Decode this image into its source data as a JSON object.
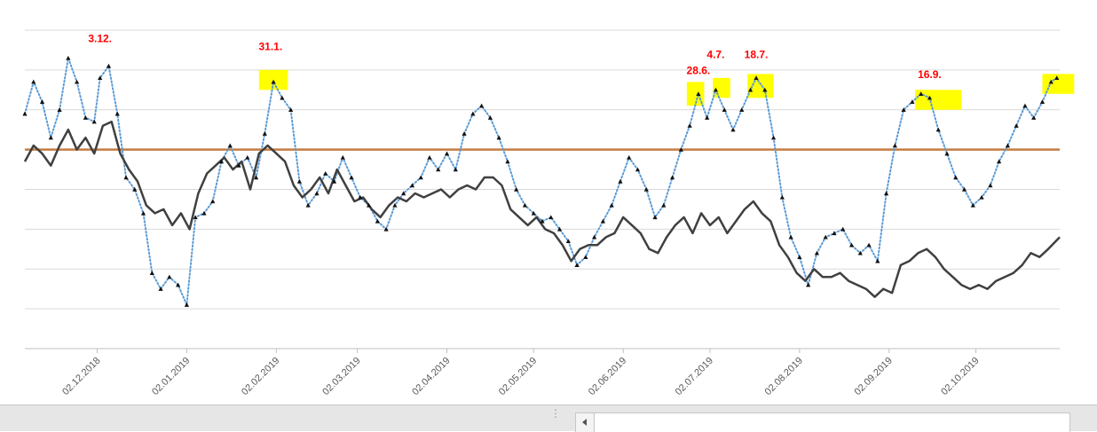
{
  "chart_data": {
    "type": "line",
    "title": "",
    "xlabel": "",
    "ylabel": "",
    "grid": true,
    "legend": "none",
    "x_ticks": [
      "02.12.2018",
      "02.01.2019",
      "02.02.2019",
      "02.03.2019",
      "02.04.2019",
      "02.05.2019",
      "02.06.2019",
      "02.07.2019",
      "02.08.2019",
      "02.09.2019",
      "02.10.2019"
    ],
    "xlim": [
      "2018-11-07",
      "2019-10-31"
    ],
    "ylim": [
      0,
      8
    ],
    "reference_line": {
      "value": 5,
      "color": "#c47c40"
    },
    "series": [
      {
        "style": "dotted-with-triangles",
        "color": "#5b9bd5",
        "points": [
          [
            "2018-11-07",
            5.9
          ],
          [
            "2018-11-10",
            6.7
          ],
          [
            "2018-11-13",
            6.2
          ],
          [
            "2018-11-16",
            5.3
          ],
          [
            "2018-11-19",
            6.0
          ],
          [
            "2018-11-22",
            7.3
          ],
          [
            "2018-11-25",
            6.7
          ],
          [
            "2018-11-28",
            5.8
          ],
          [
            "2018-12-01",
            5.7
          ],
          [
            "2018-12-03",
            6.8
          ],
          [
            "2018-12-06",
            7.1
          ],
          [
            "2018-12-09",
            5.9
          ],
          [
            "2018-12-12",
            4.3
          ],
          [
            "2018-12-15",
            4.0
          ],
          [
            "2018-12-18",
            3.4
          ],
          [
            "2018-12-21",
            1.9
          ],
          [
            "2018-12-24",
            1.5
          ],
          [
            "2018-12-27",
            1.8
          ],
          [
            "2018-12-30",
            1.6
          ],
          [
            "2019-01-02",
            1.1
          ],
          [
            "2019-01-05",
            3.3
          ],
          [
            "2019-01-08",
            3.4
          ],
          [
            "2019-01-11",
            3.7
          ],
          [
            "2019-01-14",
            4.7
          ],
          [
            "2019-01-17",
            5.1
          ],
          [
            "2019-01-20",
            4.6
          ],
          [
            "2019-01-23",
            4.8
          ],
          [
            "2019-01-26",
            4.3
          ],
          [
            "2019-01-29",
            5.4
          ],
          [
            "2019-02-01",
            6.7
          ],
          [
            "2019-02-04",
            6.3
          ],
          [
            "2019-02-07",
            6.0
          ],
          [
            "2019-02-10",
            4.2
          ],
          [
            "2019-02-13",
            3.6
          ],
          [
            "2019-02-16",
            3.9
          ],
          [
            "2019-02-19",
            4.4
          ],
          [
            "2019-02-22",
            4.2
          ],
          [
            "2019-02-25",
            4.8
          ],
          [
            "2019-02-28",
            4.3
          ],
          [
            "2019-03-03",
            3.8
          ],
          [
            "2019-03-06",
            3.6
          ],
          [
            "2019-03-09",
            3.2
          ],
          [
            "2019-03-12",
            3.0
          ],
          [
            "2019-03-15",
            3.6
          ],
          [
            "2019-03-18",
            3.9
          ],
          [
            "2019-03-21",
            4.1
          ],
          [
            "2019-03-24",
            4.3
          ],
          [
            "2019-03-27",
            4.8
          ],
          [
            "2019-03-30",
            4.5
          ],
          [
            "2019-04-02",
            4.9
          ],
          [
            "2019-04-05",
            4.5
          ],
          [
            "2019-04-08",
            5.4
          ],
          [
            "2019-04-11",
            5.9
          ],
          [
            "2019-04-14",
            6.1
          ],
          [
            "2019-04-17",
            5.8
          ],
          [
            "2019-04-20",
            5.3
          ],
          [
            "2019-04-23",
            4.7
          ],
          [
            "2019-04-26",
            4.0
          ],
          [
            "2019-04-29",
            3.6
          ],
          [
            "2019-05-02",
            3.4
          ],
          [
            "2019-05-05",
            3.2
          ],
          [
            "2019-05-08",
            3.3
          ],
          [
            "2019-05-11",
            3.0
          ],
          [
            "2019-05-14",
            2.7
          ],
          [
            "2019-05-17",
            2.1
          ],
          [
            "2019-05-20",
            2.3
          ],
          [
            "2019-05-23",
            2.8
          ],
          [
            "2019-05-26",
            3.2
          ],
          [
            "2019-05-29",
            3.6
          ],
          [
            "2019-06-01",
            4.2
          ],
          [
            "2019-06-04",
            4.8
          ],
          [
            "2019-06-07",
            4.5
          ],
          [
            "2019-06-10",
            4.0
          ],
          [
            "2019-06-13",
            3.3
          ],
          [
            "2019-06-16",
            3.6
          ],
          [
            "2019-06-19",
            4.3
          ],
          [
            "2019-06-22",
            5.0
          ],
          [
            "2019-06-25",
            5.6
          ],
          [
            "2019-06-28",
            6.4
          ],
          [
            "2019-07-01",
            5.8
          ],
          [
            "2019-07-04",
            6.5
          ],
          [
            "2019-07-07",
            6.0
          ],
          [
            "2019-07-10",
            5.5
          ],
          [
            "2019-07-13",
            6.0
          ],
          [
            "2019-07-16",
            6.5
          ],
          [
            "2019-07-18",
            6.8
          ],
          [
            "2019-07-21",
            6.5
          ],
          [
            "2019-07-24",
            5.3
          ],
          [
            "2019-07-27",
            3.8
          ],
          [
            "2019-07-30",
            2.8
          ],
          [
            "2019-08-02",
            2.3
          ],
          [
            "2019-08-05",
            1.6
          ],
          [
            "2019-08-08",
            2.4
          ],
          [
            "2019-08-11",
            2.8
          ],
          [
            "2019-08-14",
            2.9
          ],
          [
            "2019-08-17",
            3.0
          ],
          [
            "2019-08-20",
            2.6
          ],
          [
            "2019-08-23",
            2.4
          ],
          [
            "2019-08-26",
            2.6
          ],
          [
            "2019-08-29",
            2.2
          ],
          [
            "2019-09-01",
            3.9
          ],
          [
            "2019-09-04",
            5.1
          ],
          [
            "2019-09-07",
            6.0
          ],
          [
            "2019-09-10",
            6.2
          ],
          [
            "2019-09-13",
            6.4
          ],
          [
            "2019-09-16",
            6.3
          ],
          [
            "2019-09-19",
            5.5
          ],
          [
            "2019-09-22",
            4.9
          ],
          [
            "2019-09-25",
            4.3
          ],
          [
            "2019-09-28",
            4.0
          ],
          [
            "2019-10-01",
            3.6
          ],
          [
            "2019-10-04",
            3.8
          ],
          [
            "2019-10-07",
            4.1
          ],
          [
            "2019-10-10",
            4.7
          ],
          [
            "2019-10-13",
            5.1
          ],
          [
            "2019-10-16",
            5.6
          ],
          [
            "2019-10-19",
            6.1
          ],
          [
            "2019-10-22",
            5.8
          ],
          [
            "2019-10-25",
            6.2
          ],
          [
            "2019-10-28",
            6.7
          ],
          [
            "2019-10-30",
            6.8
          ]
        ]
      },
      {
        "style": "solid",
        "color": "#404040",
        "points": [
          [
            "2018-11-07",
            4.7
          ],
          [
            "2018-11-10",
            5.1
          ],
          [
            "2018-11-13",
            4.9
          ],
          [
            "2018-11-16",
            4.6
          ],
          [
            "2018-11-19",
            5.1
          ],
          [
            "2018-11-22",
            5.5
          ],
          [
            "2018-11-25",
            5.0
          ],
          [
            "2018-11-28",
            5.3
          ],
          [
            "2018-12-01",
            4.9
          ],
          [
            "2018-12-04",
            5.6
          ],
          [
            "2018-12-07",
            5.7
          ],
          [
            "2018-12-10",
            4.9
          ],
          [
            "2018-12-13",
            4.5
          ],
          [
            "2018-12-16",
            4.2
          ],
          [
            "2018-12-19",
            3.6
          ],
          [
            "2018-12-22",
            3.4
          ],
          [
            "2018-12-25",
            3.5
          ],
          [
            "2018-12-28",
            3.1
          ],
          [
            "2018-12-31",
            3.4
          ],
          [
            "2019-01-03",
            3.0
          ],
          [
            "2019-01-06",
            3.9
          ],
          [
            "2019-01-09",
            4.4
          ],
          [
            "2019-01-12",
            4.6
          ],
          [
            "2019-01-15",
            4.8
          ],
          [
            "2019-01-18",
            4.5
          ],
          [
            "2019-01-21",
            4.7
          ],
          [
            "2019-01-24",
            4.0
          ],
          [
            "2019-01-27",
            4.9
          ],
          [
            "2019-01-30",
            5.1
          ],
          [
            "2019-02-02",
            4.9
          ],
          [
            "2019-02-05",
            4.7
          ],
          [
            "2019-02-08",
            4.1
          ],
          [
            "2019-02-11",
            3.8
          ],
          [
            "2019-02-14",
            4.0
          ],
          [
            "2019-02-17",
            4.3
          ],
          [
            "2019-02-20",
            3.9
          ],
          [
            "2019-02-23",
            4.5
          ],
          [
            "2019-02-26",
            4.1
          ],
          [
            "2019-03-01",
            3.7
          ],
          [
            "2019-03-04",
            3.8
          ],
          [
            "2019-03-07",
            3.5
          ],
          [
            "2019-03-10",
            3.3
          ],
          [
            "2019-03-13",
            3.6
          ],
          [
            "2019-03-16",
            3.8
          ],
          [
            "2019-03-19",
            3.7
          ],
          [
            "2019-03-22",
            3.9
          ],
          [
            "2019-03-25",
            3.8
          ],
          [
            "2019-03-28",
            3.9
          ],
          [
            "2019-03-31",
            4.0
          ],
          [
            "2019-04-03",
            3.8
          ],
          [
            "2019-04-06",
            4.0
          ],
          [
            "2019-04-09",
            4.1
          ],
          [
            "2019-04-12",
            4.0
          ],
          [
            "2019-04-15",
            4.3
          ],
          [
            "2019-04-18",
            4.3
          ],
          [
            "2019-04-21",
            4.1
          ],
          [
            "2019-04-24",
            3.5
          ],
          [
            "2019-04-27",
            3.3
          ],
          [
            "2019-04-30",
            3.1
          ],
          [
            "2019-05-03",
            3.3
          ],
          [
            "2019-05-06",
            3.0
          ],
          [
            "2019-05-09",
            2.9
          ],
          [
            "2019-05-12",
            2.6
          ],
          [
            "2019-05-15",
            2.2
          ],
          [
            "2019-05-18",
            2.5
          ],
          [
            "2019-05-21",
            2.6
          ],
          [
            "2019-05-24",
            2.6
          ],
          [
            "2019-05-27",
            2.8
          ],
          [
            "2019-05-30",
            2.9
          ],
          [
            "2019-06-02",
            3.3
          ],
          [
            "2019-06-05",
            3.1
          ],
          [
            "2019-06-08",
            2.9
          ],
          [
            "2019-06-11",
            2.5
          ],
          [
            "2019-06-14",
            2.4
          ],
          [
            "2019-06-17",
            2.8
          ],
          [
            "2019-06-20",
            3.1
          ],
          [
            "2019-06-23",
            3.3
          ],
          [
            "2019-06-26",
            2.9
          ],
          [
            "2019-06-29",
            3.4
          ],
          [
            "2019-07-02",
            3.1
          ],
          [
            "2019-07-05",
            3.3
          ],
          [
            "2019-07-08",
            2.9
          ],
          [
            "2019-07-11",
            3.2
          ],
          [
            "2019-07-14",
            3.5
          ],
          [
            "2019-07-17",
            3.7
          ],
          [
            "2019-07-20",
            3.4
          ],
          [
            "2019-07-23",
            3.2
          ],
          [
            "2019-07-26",
            2.6
          ],
          [
            "2019-07-29",
            2.3
          ],
          [
            "2019-08-01",
            1.9
          ],
          [
            "2019-08-04",
            1.7
          ],
          [
            "2019-08-07",
            2.0
          ],
          [
            "2019-08-10",
            1.8
          ],
          [
            "2019-08-13",
            1.8
          ],
          [
            "2019-08-16",
            1.9
          ],
          [
            "2019-08-19",
            1.7
          ],
          [
            "2019-08-22",
            1.6
          ],
          [
            "2019-08-25",
            1.5
          ],
          [
            "2019-08-28",
            1.3
          ],
          [
            "2019-08-31",
            1.5
          ],
          [
            "2019-09-03",
            1.4
          ],
          [
            "2019-09-06",
            2.1
          ],
          [
            "2019-09-09",
            2.2
          ],
          [
            "2019-09-12",
            2.4
          ],
          [
            "2019-09-15",
            2.5
          ],
          [
            "2019-09-18",
            2.3
          ],
          [
            "2019-09-21",
            2.0
          ],
          [
            "2019-09-24",
            1.8
          ],
          [
            "2019-09-27",
            1.6
          ],
          [
            "2019-09-30",
            1.5
          ],
          [
            "2019-10-03",
            1.6
          ],
          [
            "2019-10-06",
            1.5
          ],
          [
            "2019-10-09",
            1.7
          ],
          [
            "2019-10-12",
            1.8
          ],
          [
            "2019-10-15",
            1.9
          ],
          [
            "2019-10-18",
            2.1
          ],
          [
            "2019-10-21",
            2.4
          ],
          [
            "2019-10-24",
            2.3
          ],
          [
            "2019-10-27",
            2.5
          ],
          [
            "2019-10-31",
            2.8
          ]
        ]
      }
    ],
    "annotations": [
      {
        "text": "3.12.",
        "date": "2018-12-03",
        "y": 7.7
      },
      {
        "text": "31.1.",
        "date": "2019-01-31",
        "y": 7.5
      },
      {
        "text": "28.6.",
        "date": "2019-06-28",
        "y": 6.9
      },
      {
        "text": "4.7.",
        "date": "2019-07-04",
        "y": 7.3
      },
      {
        "text": "18.7.",
        "date": "2019-07-18",
        "y": 7.3
      },
      {
        "text": "16.9.",
        "date": "2019-09-16",
        "y": 6.8
      }
    ],
    "highlight_color": "#ffff00",
    "highlights": [
      {
        "from": "2019-01-27",
        "to": "2019-02-06",
        "y_from": 6.5,
        "y_to": 7.0
      },
      {
        "from": "2019-06-24",
        "to": "2019-06-30",
        "y_from": 6.1,
        "y_to": 6.7
      },
      {
        "from": "2019-07-03",
        "to": "2019-07-09",
        "y_from": 6.3,
        "y_to": 6.8
      },
      {
        "from": "2019-07-15",
        "to": "2019-07-24",
        "y_from": 6.3,
        "y_to": 6.9
      },
      {
        "from": "2019-09-11",
        "to": "2019-09-27",
        "y_from": 6.0,
        "y_to": 6.5
      },
      {
        "from": "2019-10-25",
        "to": "2019-11-05",
        "y_from": 6.4,
        "y_to": 6.9
      }
    ]
  }
}
